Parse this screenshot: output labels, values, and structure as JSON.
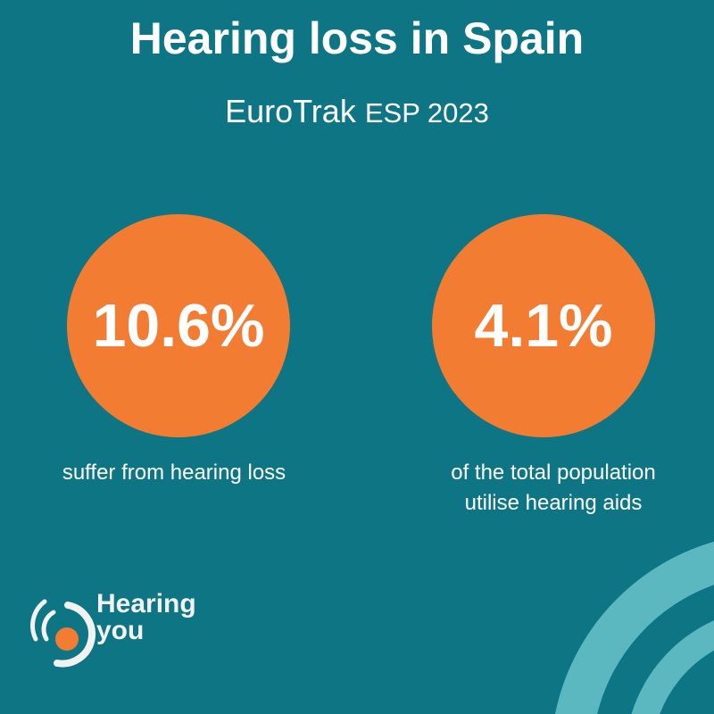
{
  "title": "Hearing loss in Spain",
  "subtitle": {
    "brand": "EuroTrak",
    "suffix": "ESP 2023"
  },
  "stats": [
    {
      "value": "10.6%",
      "caption_lines": [
        "suffer from hearing loss"
      ]
    },
    {
      "value": "4.1%",
      "caption_lines": [
        "of the total population",
        "utilise hearing aids"
      ]
    }
  ],
  "logo": {
    "line1": "Hearing",
    "line2": "you"
  },
  "colors": {
    "background": "#0e7584",
    "accent": "#f37c33",
    "arc": "#5bb8c1"
  }
}
